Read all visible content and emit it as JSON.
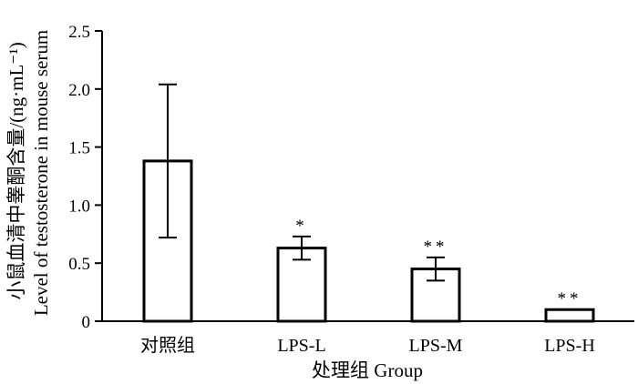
{
  "chart_data": {
    "type": "bar",
    "categories": [
      "对照组",
      "LPS-L",
      "LPS-M",
      "LPS-H"
    ],
    "values": [
      1.38,
      0.63,
      0.45,
      0.1
    ],
    "error": [
      0.66,
      0.1,
      0.1,
      0.0
    ],
    "significance": [
      "",
      "*",
      "**",
      "**"
    ],
    "xlabel": "处理组 Group",
    "ylabel_lines": [
      "小鼠血清中睾酮含量/(ng·mL⁻¹)",
      "Level of testosterone in mouse serum"
    ],
    "ylim": [
      0,
      2.5
    ],
    "yticks": [
      0,
      0.5,
      1.0,
      1.5,
      2.0,
      2.5
    ],
    "ytick_labels": [
      "0",
      "0.5",
      "1.0",
      "1.5",
      "2.0",
      "2.5"
    ],
    "grid": false,
    "colors": {
      "bar_fill": "#ffffff",
      "bar_stroke": "#000000",
      "axis": "#000000"
    }
  }
}
